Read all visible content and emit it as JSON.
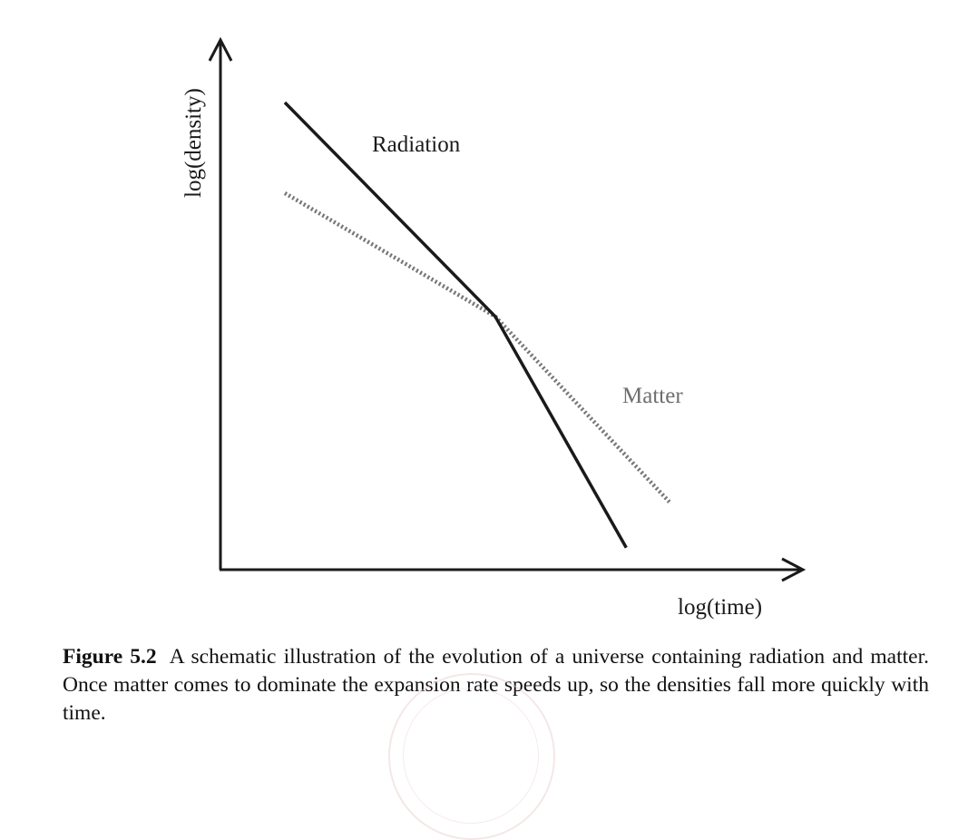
{
  "chart_data": {
    "type": "line",
    "xlabel": "log(time)",
    "ylabel": "log(density)",
    "xlim": [
      0,
      100
    ],
    "ylim": [
      0,
      100
    ],
    "grid": false,
    "series": [
      {
        "name": "Radiation",
        "style": "solid",
        "color": "#1a1a1a",
        "points": [
          [
            11.5,
            100
          ],
          [
            49.1,
            54.2
          ],
          [
            72.5,
            4.7
          ]
        ]
      },
      {
        "name": "Matter",
        "style": "dotted",
        "color": "#777777",
        "points": [
          [
            11.5,
            80.6
          ],
          [
            49.1,
            54.2
          ],
          [
            80.2,
            14.5
          ]
        ]
      }
    ]
  },
  "caption": {
    "label": "Figure 5.2",
    "text": "A schematic illustration of the evolution of a universe containing radiation and matter. Once matter comes to dominate the expansion rate speeds up, so the densities fall more quickly with time."
  }
}
